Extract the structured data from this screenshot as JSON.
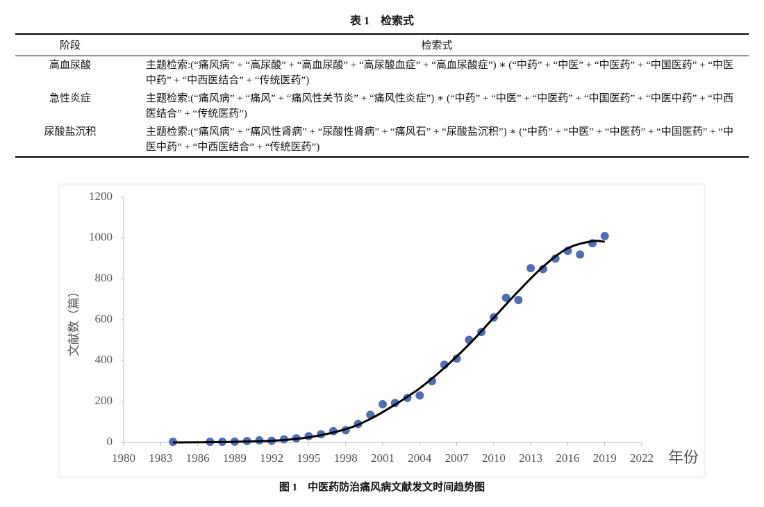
{
  "table": {
    "title": "表 1　检索式",
    "headers": [
      "阶段",
      "检索式"
    ],
    "rows": [
      [
        "高血尿酸",
        "主题检索:(“痛风病” + “高尿酸” + “高血尿酸” + “高尿酸血症” + “高血尿酸症”) ∗ (“中药” + “中医” + “中医药” + “中国医药” + “中医中药” + “中西医结合” + “传统医药”)"
      ],
      [
        "急性炎症",
        "主题检索:(“痛风病” + “痛风” + “痛风性关节炎” + “痛风性炎症”) ∗ (“中药” + “中医” + “中医药” + “中国医药” + “中医中药” + “中西医结合” + “传统医药”)"
      ],
      [
        "尿酸盐沉积",
        "主题检索:(“痛风病” + “痛风性肾病” + “尿酸性肾病” + “痛风石” + “尿酸盐沉积”) ∗ (“中药” + “中医” + “中医药” + “中国医药” + “中医中药” + “中西医结合” + “传统医药”)"
      ]
    ]
  },
  "chart_data": {
    "type": "scatter",
    "caption": "图 1　中医药防治痛风病文献发文时间趋势图",
    "x_label": "年份",
    "y_label": "文献数（篇）",
    "color": "#4f6fb5",
    "x": [
      1984,
      1987,
      1988,
      1989,
      1990,
      1991,
      1992,
      1993,
      1994,
      1995,
      1996,
      1997,
      1998,
      1999,
      2000,
      2001,
      2002,
      2003,
      2004,
      2005,
      2006,
      2007,
      2008,
      2009,
      2010,
      2011,
      2012,
      2013,
      2014,
      2015,
      2016,
      2017,
      2018,
      2019
    ],
    "values": [
      3,
      3,
      3,
      4,
      7,
      10,
      8,
      15,
      20,
      30,
      40,
      55,
      60,
      90,
      135,
      187,
      193,
      218,
      230,
      300,
      380,
      410,
      502,
      540,
      612,
      708,
      697,
      853,
      848,
      900,
      938,
      920,
      975,
      1010
    ],
    "trendline": {
      "color": "#000000",
      "x": [
        1984,
        1988,
        1992,
        1995,
        1998,
        2000,
        2002,
        2004,
        2006,
        2008,
        2010,
        2012,
        2014,
        2016,
        2018,
        2019
      ],
      "values": [
        0,
        2,
        8,
        25,
        65,
        115,
        185,
        265,
        365,
        480,
        610,
        740,
        860,
        950,
        985,
        982
      ]
    },
    "xlim": [
      1980,
      2022
    ],
    "xticks": [
      1980,
      1983,
      1986,
      1989,
      1992,
      1995,
      1998,
      2001,
      2004,
      2007,
      2010,
      2013,
      2016,
      2019,
      2022
    ],
    "ylim": [
      0,
      1200
    ],
    "yticks": [
      0,
      200,
      400,
      600,
      800,
      1000,
      1200
    ]
  }
}
